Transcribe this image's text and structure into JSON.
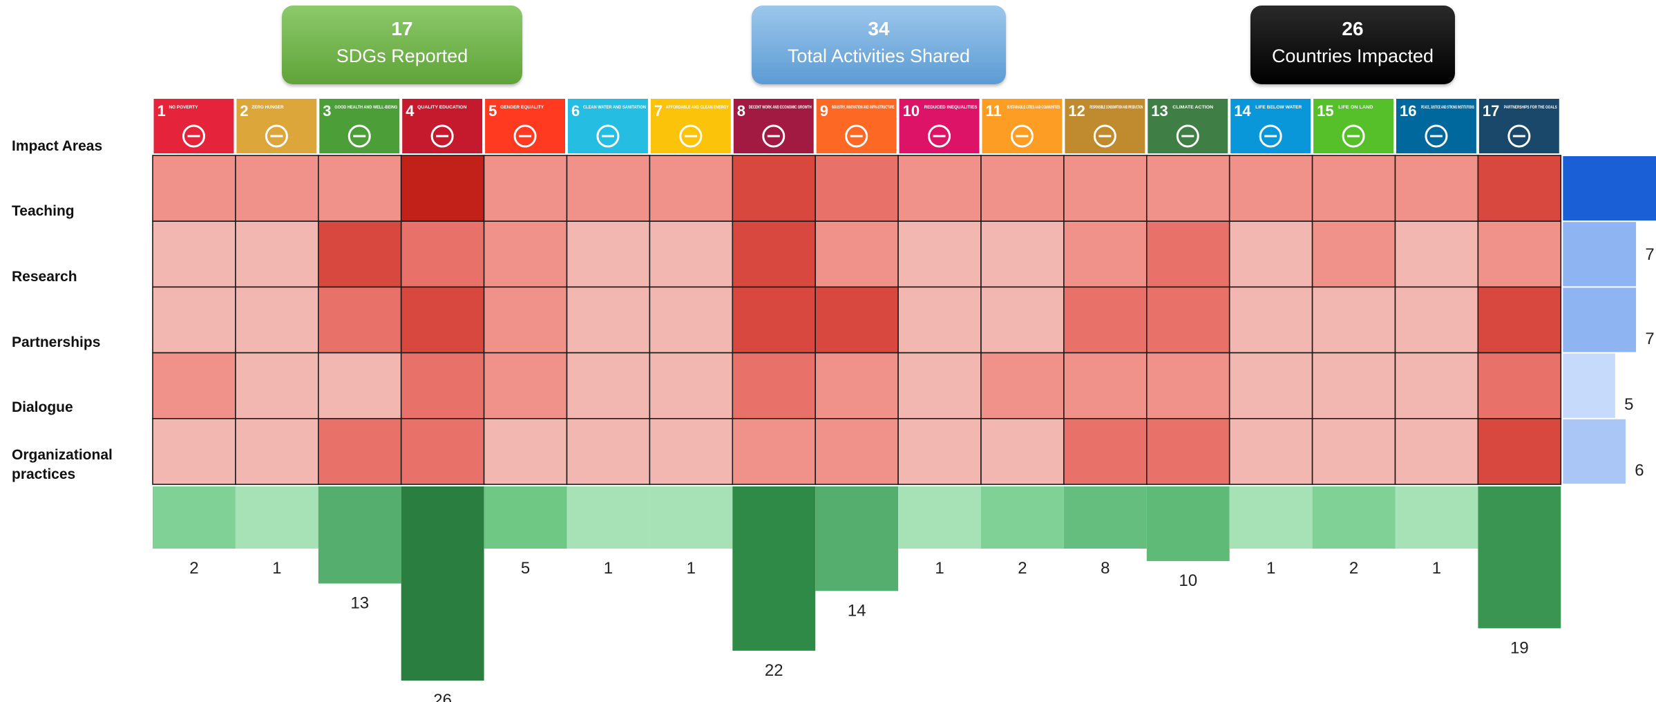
{
  "kpis": [
    {
      "value": "17",
      "label": "SDGs Reported",
      "color": "#6aab43"
    },
    {
      "value": "34",
      "label": "Total Activities Shared",
      "color": "#6fa8dc"
    },
    {
      "value": "26",
      "label": "Countries Impacted",
      "color": "#000000"
    }
  ],
  "row_labels": {
    "impact": "Impact Areas",
    "teaching": "Teaching",
    "research": "Research",
    "partnerships": "Partnerships",
    "dialogue": "Dialogue",
    "org_line1": "Organizational",
    "org_line2": "practices"
  },
  "sdg_tiles": [
    {
      "num": "1",
      "text": "NO POVERTY",
      "color": "#e5243b",
      "icon": "family-icon"
    },
    {
      "num": "2",
      "text": "ZERO HUNGER",
      "color": "#dda63a",
      "icon": "bowl-icon"
    },
    {
      "num": "3",
      "text": "GOOD HEALTH AND WELL-BEING",
      "color": "#4c9f38",
      "icon": "heartbeat-icon"
    },
    {
      "num": "4",
      "text": "QUALITY EDUCATION",
      "color": "#c5192d",
      "icon": "book-icon"
    },
    {
      "num": "5",
      "text": "GENDER EQUALITY",
      "color": "#ff3a21",
      "icon": "gender-icon"
    },
    {
      "num": "6",
      "text": "CLEAN WATER AND SANITATION",
      "color": "#26bde2",
      "icon": "water-icon"
    },
    {
      "num": "7",
      "text": "AFFORDABLE AND CLEAN ENERGY",
      "color": "#fcc30b",
      "icon": "sun-icon"
    },
    {
      "num": "8",
      "text": "DECENT WORK AND ECONOMIC GROWTH",
      "color": "#a21942",
      "icon": "growth-chart-icon"
    },
    {
      "num": "9",
      "text": "INDUSTRY, INNOVATION AND INFRASTRUCTURE",
      "color": "#fd6925",
      "icon": "cubes-icon"
    },
    {
      "num": "10",
      "text": "REDUCED INEQUALITIES",
      "color": "#dd1367",
      "icon": "equal-icon"
    },
    {
      "num": "11",
      "text": "SUSTAINABLE CITIES AND COMMUNITIES",
      "color": "#fd9d24",
      "icon": "city-icon"
    },
    {
      "num": "12",
      "text": "RESPONSIBLE CONSUMPTION AND PRODUCTION",
      "color": "#bf8b2e",
      "icon": "infinity-icon"
    },
    {
      "num": "13",
      "text": "CLIMATE ACTION",
      "color": "#3f7e44",
      "icon": "eye-icon"
    },
    {
      "num": "14",
      "text": "LIFE BELOW WATER",
      "color": "#0a97d9",
      "icon": "fish-icon"
    },
    {
      "num": "15",
      "text": "LIFE ON LAND",
      "color": "#56c02b",
      "icon": "tree-icon"
    },
    {
      "num": "16",
      "text": "PEACE, JUSTICE AND STRONG INSTITUTIONS",
      "color": "#00689d",
      "icon": "dove-icon"
    },
    {
      "num": "17",
      "text": "PARTNERSHIPS FOR THE GOALS",
      "color": "#19486a",
      "icon": "rings-icon"
    }
  ],
  "chart_data": {
    "type": "heatmap",
    "columns": [
      "1",
      "2",
      "3",
      "4",
      "5",
      "6",
      "7",
      "8",
      "9",
      "10",
      "11",
      "12",
      "13",
      "14",
      "15",
      "16",
      "17"
    ],
    "rows": [
      "Teaching",
      "Research",
      "Partnerships",
      "Dialogue",
      "Organizational practices"
    ],
    "intensity": [
      [
        2,
        2,
        2,
        5,
        2,
        2,
        2,
        4,
        3,
        2,
        2,
        2,
        2,
        2,
        2,
        2,
        4
      ],
      [
        1,
        1,
        4,
        3,
        2,
        1,
        1,
        4,
        2,
        1,
        1,
        2,
        3,
        1,
        2,
        1,
        2
      ],
      [
        1,
        1,
        3,
        4,
        2,
        1,
        1,
        4,
        4,
        1,
        1,
        3,
        3,
        1,
        1,
        1,
        4
      ],
      [
        2,
        1,
        1,
        3,
        2,
        1,
        1,
        3,
        2,
        1,
        2,
        2,
        2,
        1,
        1,
        1,
        3
      ],
      [
        1,
        1,
        3,
        3,
        1,
        1,
        1,
        2,
        2,
        1,
        1,
        3,
        3,
        1,
        1,
        1,
        4
      ]
    ],
    "heat_colors": [
      "#f3b7b1",
      "#f1928a",
      "#e87269",
      "#d9483f",
      "#c2211a"
    ],
    "row_totals": [
      9,
      7,
      7,
      5,
      6
    ],
    "row_total_colors": [
      "#1a5fd6",
      "#8fb4f2",
      "#8fb4f2",
      "#c6dafb",
      "#a9c6f6"
    ],
    "row_total_max": 9,
    "column_totals": [
      2,
      1,
      13,
      26,
      5,
      1,
      1,
      22,
      14,
      1,
      2,
      8,
      10,
      1,
      2,
      1,
      19
    ],
    "column_total_colors": [
      "#7fd196",
      "#a7e2b7",
      "#55ad6e",
      "#2a7e40",
      "#6fc985",
      "#a7e2b7",
      "#a7e2b7",
      "#2f8a48",
      "#55ad6e",
      "#a7e2b7",
      "#7fd196",
      "#66be7e",
      "#5fb977",
      "#a7e2b7",
      "#7fd196",
      "#a7e2b7",
      "#3a9553"
    ],
    "column_total_max": 26
  }
}
